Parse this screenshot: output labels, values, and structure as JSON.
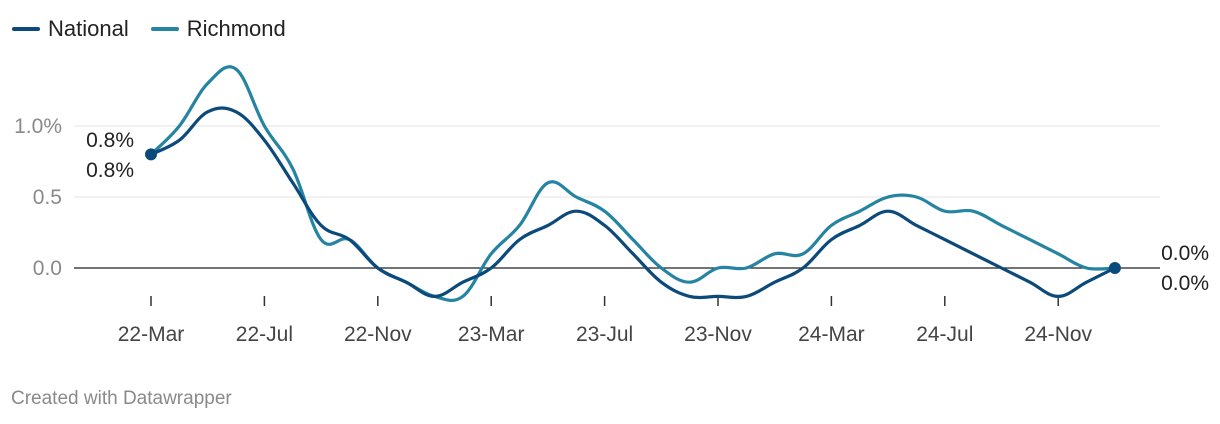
{
  "colors": {
    "national": "#0b4a7a",
    "richmond": "#2584a2",
    "grid": "#e3e3e3",
    "zero": "#222222"
  },
  "legend": [
    {
      "label": "National",
      "color": "#0b4a7a"
    },
    {
      "label": "Richmond",
      "color": "#2584a2"
    }
  ],
  "footer": {
    "credit": "Created with Datawrapper"
  },
  "chart_data": {
    "type": "line",
    "x_ticks": [
      "22-Mar",
      "22-Jul",
      "22-Nov",
      "23-Mar",
      "23-Jul",
      "23-Nov",
      "24-Mar",
      "24-Jul",
      "24-Nov"
    ],
    "y_ticks": [
      {
        "value": 1.0,
        "label": "1.0%"
      },
      {
        "value": 0.5,
        "label": "0.5"
      },
      {
        "value": 0.0,
        "label": "0.0"
      }
    ],
    "ylim": [
      -0.25,
      1.45
    ],
    "grid": true,
    "legend_position": "top-left",
    "series": [
      {
        "name": "National",
        "color": "#0b4a7a",
        "x": [
          "2022-03",
          "2022-04",
          "2022-05",
          "2022-06",
          "2022-07",
          "2022-08",
          "2022-09",
          "2022-10",
          "2022-11",
          "2022-12",
          "2023-01",
          "2023-02",
          "2023-03",
          "2023-04",
          "2023-05",
          "2023-06",
          "2023-07",
          "2023-08",
          "2023-09",
          "2023-10",
          "2023-11",
          "2023-12",
          "2024-01",
          "2024-02",
          "2024-03",
          "2024-04",
          "2024-05",
          "2024-06",
          "2024-07",
          "2024-08",
          "2024-09",
          "2024-10",
          "2024-11",
          "2024-12",
          "2025-01"
        ],
        "values": [
          0.8,
          0.9,
          1.1,
          1.1,
          0.9,
          0.6,
          0.3,
          0.2,
          0.0,
          -0.1,
          -0.2,
          -0.1,
          0.0,
          0.2,
          0.3,
          0.4,
          0.3,
          0.1,
          -0.1,
          -0.2,
          -0.2,
          -0.2,
          -0.1,
          0.0,
          0.2,
          0.3,
          0.4,
          0.3,
          0.2,
          0.1,
          0.0,
          -0.1,
          -0.2,
          -0.1,
          0.0
        ],
        "start_label": "0.8%",
        "end_label": "0.0%"
      },
      {
        "name": "Richmond",
        "color": "#2584a2",
        "x": [
          "2022-03",
          "2022-04",
          "2022-05",
          "2022-06",
          "2022-07",
          "2022-08",
          "2022-09",
          "2022-10",
          "2022-11",
          "2022-12",
          "2023-01",
          "2023-02",
          "2023-03",
          "2023-04",
          "2023-05",
          "2023-06",
          "2023-07",
          "2023-08",
          "2023-09",
          "2023-10",
          "2023-11",
          "2023-12",
          "2024-01",
          "2024-02",
          "2024-03",
          "2024-04",
          "2024-05",
          "2024-06",
          "2024-07",
          "2024-08",
          "2024-09",
          "2024-10",
          "2024-11",
          "2024-12",
          "2025-01"
        ],
        "values": [
          0.8,
          1.0,
          1.3,
          1.4,
          1.0,
          0.7,
          0.2,
          0.2,
          0.0,
          -0.1,
          -0.2,
          -0.2,
          0.1,
          0.3,
          0.6,
          0.5,
          0.4,
          0.2,
          0.0,
          -0.1,
          0.0,
          0.0,
          0.1,
          0.1,
          0.3,
          0.4,
          0.5,
          0.5,
          0.4,
          0.4,
          0.3,
          0.2,
          0.1,
          0.0,
          0.0
        ],
        "start_label": "0.8%",
        "end_label": "0.0%"
      }
    ]
  }
}
